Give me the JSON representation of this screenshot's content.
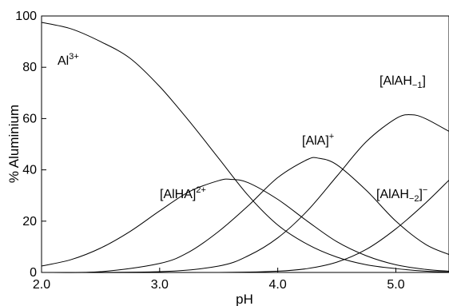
{
  "chart_data": {
    "type": "line",
    "title": "",
    "xlabel": "pH",
    "ylabel": "% Aluminium",
    "xlim": [
      2.0,
      5.45
    ],
    "ylim": [
      0,
      100
    ],
    "x_ticks": [
      2.0,
      3.0,
      4.0,
      5.0
    ],
    "x_tick_labels": [
      "2.0",
      "3.0",
      "4.0",
      "5.0"
    ],
    "y_ticks": [
      0,
      20,
      40,
      60,
      80,
      100
    ],
    "y_tick_labels": [
      "0",
      "20",
      "40",
      "60",
      "80",
      "100"
    ],
    "grid": false,
    "series": [
      {
        "label_main": "Al",
        "label_sup": "3+",
        "label_sub": "",
        "label_tail": "",
        "x": [
          2.0,
          2.25,
          2.5,
          2.75,
          3.0,
          3.25,
          3.5,
          3.75,
          4.0,
          4.25,
          4.5,
          4.75,
          5.0,
          5.25,
          5.45
        ],
        "y": [
          97.5,
          95.0,
          90.0,
          83.5,
          72.5,
          59.0,
          44.5,
          30.0,
          18.5,
          11.0,
          6.0,
          3.0,
          1.5,
          0.5,
          0.2
        ]
      },
      {
        "label_main": "[AlHA]",
        "label_sup": "2+",
        "label_sub": "",
        "label_tail": "",
        "x": [
          2.0,
          2.25,
          2.5,
          2.75,
          3.0,
          3.25,
          3.5,
          3.6,
          3.75,
          4.0,
          4.25,
          4.5,
          4.75,
          5.0,
          5.25,
          5.45
        ],
        "y": [
          2.5,
          5.0,
          9.5,
          16.0,
          24.0,
          31.5,
          35.8,
          36.3,
          35.0,
          28.5,
          20.0,
          12.0,
          6.5,
          3.0,
          1.2,
          0.5
        ]
      },
      {
        "label_main": "[AlA]",
        "label_sup": "+",
        "label_sub": "",
        "label_tail": "",
        "x": [
          2.0,
          2.5,
          3.0,
          3.25,
          3.5,
          3.75,
          4.0,
          4.25,
          4.35,
          4.5,
          4.75,
          5.0,
          5.25,
          5.45
        ],
        "y": [
          0.0,
          0.3,
          3.5,
          8.0,
          16.0,
          26.0,
          37.0,
          44.0,
          44.5,
          42.0,
          32.0,
          20.0,
          11.0,
          7.0
        ]
      },
      {
        "label_main": "[AlAH",
        "label_sup": "",
        "label_sub": "−1",
        "label_tail": "]",
        "x": [
          2.0,
          3.0,
          3.5,
          3.75,
          4.0,
          4.25,
          4.5,
          4.75,
          5.0,
          5.13,
          5.25,
          5.45
        ],
        "y": [
          0.0,
          0.3,
          2.5,
          6.5,
          13.5,
          24.0,
          37.5,
          51.0,
          60.0,
          61.5,
          60.0,
          55.0
        ]
      },
      {
        "label_main": "[AlAH",
        "label_sup": "−",
        "label_sub": "−2",
        "label_tail": "]",
        "x": [
          2.0,
          3.5,
          4.0,
          4.25,
          4.5,
          4.75,
          5.0,
          5.25,
          5.45
        ],
        "y": [
          0.0,
          0.0,
          0.5,
          1.5,
          4.0,
          9.0,
          17.0,
          27.0,
          36.0
        ]
      }
    ]
  }
}
